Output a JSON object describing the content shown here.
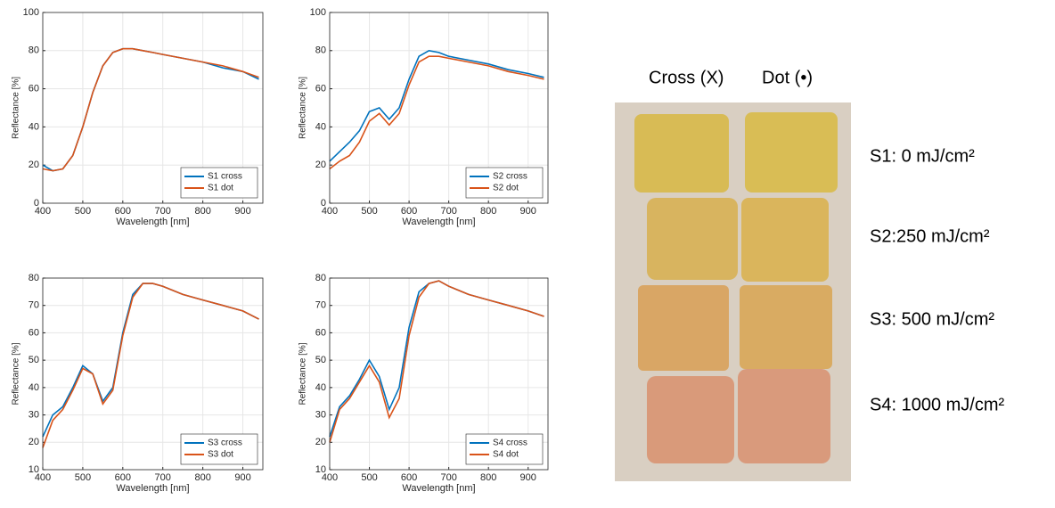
{
  "chart_data": [
    {
      "type": "line",
      "x_label": "Wavelength [nm]",
      "y_label": "Reflectance [%]",
      "x": [
        400,
        425,
        450,
        475,
        500,
        525,
        550,
        575,
        600,
        625,
        650,
        675,
        700,
        750,
        800,
        850,
        900,
        940
      ],
      "series": [
        {
          "name": "S1 cross",
          "color": "#0072bd",
          "values": [
            20,
            17,
            18,
            25,
            40,
            58,
            72,
            79,
            81,
            81,
            80,
            79,
            78,
            76,
            74,
            71,
            69,
            65
          ]
        },
        {
          "name": "S1 dot",
          "color": "#d95319",
          "values": [
            18,
            17,
            18,
            25,
            40,
            58,
            72,
            79,
            81,
            81,
            80,
            79,
            78,
            76,
            74,
            72,
            69,
            66
          ]
        }
      ],
      "xlim": [
        400,
        950
      ],
      "xticks": [
        400,
        500,
        600,
        700,
        800,
        900
      ],
      "ylim": [
        0,
        100
      ],
      "yticks": [
        0,
        20,
        40,
        60,
        80,
        100
      ],
      "grid": true,
      "legend": "lower right"
    },
    {
      "type": "line",
      "x_label": "Wavelength [nm]",
      "y_label": "Reflectance [%]",
      "x": [
        400,
        425,
        450,
        475,
        500,
        525,
        550,
        575,
        600,
        625,
        650,
        675,
        700,
        750,
        800,
        850,
        900,
        940
      ],
      "series": [
        {
          "name": "S2 cross",
          "color": "#0072bd",
          "values": [
            22,
            27,
            32,
            38,
            48,
            50,
            44,
            50,
            65,
            77,
            80,
            79,
            77,
            75,
            73,
            70,
            68,
            66
          ]
        },
        {
          "name": "S2 dot",
          "color": "#d95319",
          "values": [
            18,
            22,
            25,
            32,
            43,
            47,
            41,
            47,
            62,
            74,
            77,
            77,
            76,
            74,
            72,
            69,
            67,
            65
          ]
        }
      ],
      "xlim": [
        400,
        950
      ],
      "xticks": [
        400,
        500,
        600,
        700,
        800,
        900
      ],
      "ylim": [
        0,
        100
      ],
      "yticks": [
        0,
        20,
        40,
        60,
        80,
        100
      ],
      "grid": true,
      "legend": "lower right"
    },
    {
      "type": "line",
      "x_label": "Wavelength [nm]",
      "y_label": "Reflectance [%]",
      "x": [
        400,
        425,
        450,
        475,
        500,
        525,
        550,
        575,
        600,
        625,
        650,
        675,
        700,
        750,
        800,
        850,
        900,
        940
      ],
      "series": [
        {
          "name": "S3 cross",
          "color": "#0072bd",
          "values": [
            22,
            30,
            33,
            40,
            48,
            45,
            35,
            40,
            60,
            74,
            78,
            78,
            77,
            74,
            72,
            70,
            68,
            65
          ]
        },
        {
          "name": "S3 dot",
          "color": "#d95319",
          "values": [
            18,
            28,
            32,
            39,
            47,
            45,
            34,
            39,
            59,
            73,
            78,
            78,
            77,
            74,
            72,
            70,
            68,
            65
          ]
        }
      ],
      "xlim": [
        400,
        950
      ],
      "xticks": [
        400,
        500,
        600,
        700,
        800,
        900
      ],
      "ylim": [
        10,
        80
      ],
      "yticks": [
        10,
        20,
        30,
        40,
        50,
        60,
        70,
        80
      ],
      "grid": true,
      "legend": "lower right"
    },
    {
      "type": "line",
      "x_label": "Wavelength [nm]",
      "y_label": "Reflectance [%]",
      "x": [
        400,
        425,
        450,
        475,
        500,
        525,
        550,
        575,
        600,
        625,
        650,
        675,
        700,
        750,
        800,
        850,
        900,
        940
      ],
      "series": [
        {
          "name": "S4 cross",
          "color": "#0072bd",
          "values": [
            22,
            33,
            37,
            43,
            50,
            44,
            32,
            40,
            62,
            75,
            78,
            79,
            77,
            74,
            72,
            70,
            68,
            66
          ]
        },
        {
          "name": "S4 dot",
          "color": "#d95319",
          "values": [
            20,
            32,
            36,
            42,
            48,
            42,
            29,
            36,
            59,
            73,
            78,
            79,
            77,
            74,
            72,
            70,
            68,
            66
          ]
        }
      ],
      "xlim": [
        400,
        950
      ],
      "xticks": [
        400,
        500,
        600,
        700,
        800,
        900
      ],
      "ylim": [
        10,
        80
      ],
      "yticks": [
        10,
        20,
        30,
        40,
        50,
        60,
        70,
        80
      ],
      "grid": true,
      "legend": "lower right"
    }
  ],
  "photo": {
    "column_labels": [
      "Cross (X)",
      "Dot (•)"
    ],
    "row_labels": [
      "S1: 0 mJ/cm²",
      "S2:250 mJ/cm²",
      "S3: 500 mJ/cm²",
      "S4: 1000 mJ/cm²"
    ]
  }
}
